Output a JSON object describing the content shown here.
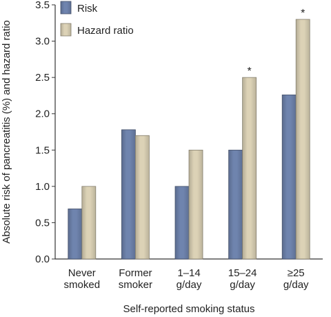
{
  "chart_data": {
    "type": "bar",
    "xlabel": "Self-reported smoking status",
    "ylabel": "Absolute risk of pancreatitis (%) and hazard ratio",
    "ylim": [
      0,
      3.5
    ],
    "y_ticks": [
      "0.0",
      "0.5",
      "1.0",
      "1.5",
      "2.0",
      "2.5",
      "3.0",
      "3.5"
    ],
    "grid": false,
    "legend_position": "top-left",
    "categories": [
      [
        "Never",
        "smoked"
      ],
      [
        "Former",
        "smoker"
      ],
      [
        "1–14",
        "g/day"
      ],
      [
        "15–24",
        "g/day"
      ],
      [
        "≥25",
        "g/day"
      ]
    ],
    "series": [
      {
        "name": "Risk",
        "color": "#6f84ae",
        "values": [
          0.69,
          1.78,
          1.0,
          1.5,
          2.26
        ]
      },
      {
        "name": "Hazard ratio",
        "color": "#dcd2b6",
        "values": [
          1.0,
          1.7,
          1.5,
          2.5,
          3.3
        ]
      }
    ],
    "annotations": [
      {
        "category_index": 3,
        "series_index": 1,
        "text": "*"
      },
      {
        "category_index": 4,
        "series_index": 1,
        "text": "*"
      }
    ]
  }
}
